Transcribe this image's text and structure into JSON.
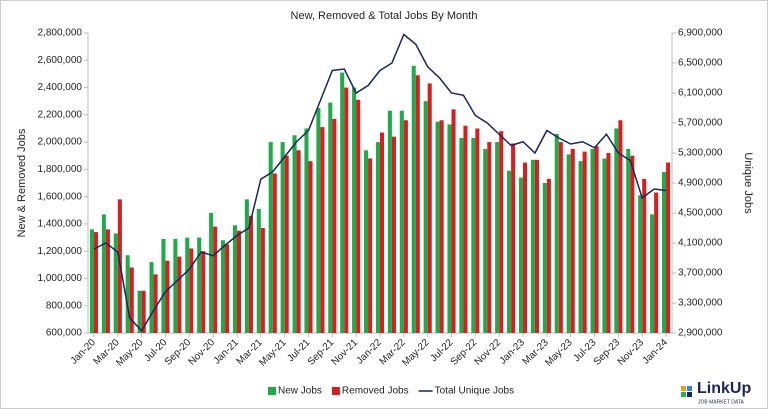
{
  "chart_data": {
    "type": "bar-line",
    "title": "New, Removed & Total Jobs By Month",
    "y_label": "New & Removed Jobs",
    "y2_label": "Unique Jobs",
    "categories": [
      "Jan-20",
      null,
      "Mar-20",
      null,
      "May-20",
      null,
      "Jul-20",
      null,
      "Sep-20",
      null,
      "Nov-20",
      null,
      "Jan-21",
      null,
      "Mar-21",
      null,
      "May-21",
      null,
      "Jul-21",
      null,
      "Sep-21",
      null,
      "Nov-21",
      null,
      "Jan-22",
      null,
      "Mar-22",
      null,
      "May-22",
      null,
      "Jul-22",
      null,
      "Sep-22",
      null,
      "Nov-22",
      null,
      "Jan-23",
      null,
      "Mar-23",
      null,
      "May-23",
      null,
      "Jul-23",
      null,
      "Sep-23",
      null,
      "Nov-23",
      null,
      "Jan-24"
    ],
    "series": [
      {
        "name": "New Jobs",
        "color": "#21a94b",
        "values": [
          1360000,
          1470000,
          1330000,
          1170000,
          910000,
          1120000,
          1290000,
          1290000,
          1300000,
          1300000,
          1480000,
          1280000,
          1390000,
          1580000,
          1510000,
          2000000,
          2000000,
          2050000,
          2100000,
          2250000,
          2290000,
          2510000,
          2400000,
          1940000,
          2000000,
          2230000,
          2230000,
          2560000,
          2300000,
          2150000,
          2130000,
          2030000,
          2030000,
          1950000,
          2000000,
          1790000,
          1740000,
          1870000,
          1700000,
          2060000,
          1910000,
          1860000,
          1950000,
          1880000,
          2100000,
          1950000,
          1610000,
          1470000,
          1780000
        ]
      },
      {
        "name": "Removed Jobs",
        "color": "#d42020",
        "values": [
          1340000,
          1360000,
          1580000,
          1080000,
          910000,
          1030000,
          1130000,
          1160000,
          1220000,
          1200000,
          1380000,
          1250000,
          1350000,
          1460000,
          1370000,
          1770000,
          1900000,
          1940000,
          1860000,
          2110000,
          2170000,
          2400000,
          2310000,
          1880000,
          2070000,
          2040000,
          2160000,
          2490000,
          2430000,
          2160000,
          2240000,
          2120000,
          2100000,
          2000000,
          2080000,
          1990000,
          1850000,
          1870000,
          1730000,
          2000000,
          1950000,
          1930000,
          1970000,
          1920000,
          2160000,
          1900000,
          1730000,
          1630000,
          1850000
        ]
      },
      {
        "name": "Total Unique Jobs",
        "color": "#1c2557",
        "axis": "y2",
        "kind": "line",
        "values": [
          4020000,
          4100000,
          3980000,
          3100000,
          2930000,
          3200000,
          3450000,
          3600000,
          3750000,
          3980000,
          3930000,
          4070000,
          4200000,
          4300000,
          4950000,
          5050000,
          5250000,
          5450000,
          5600000,
          6000000,
          6400000,
          6420000,
          6100000,
          6200000,
          6400000,
          6500000,
          6880000,
          6750000,
          6450000,
          6300000,
          6100000,
          6070000,
          5800000,
          5700000,
          5550000,
          5400000,
          5450000,
          5300000,
          5600000,
          5500000,
          5420000,
          5450000,
          5370000,
          5550000,
          5300000,
          5200000,
          4700000,
          4820000,
          4800000
        ]
      }
    ],
    "ylim": [
      600000,
      2800000
    ],
    "yticks": [
      {
        "value": 600000,
        "label": "600,000"
      },
      {
        "value": 800000,
        "label": "800,000"
      },
      {
        "value": 1000000,
        "label": "1,000,000"
      },
      {
        "value": 1200000,
        "label": "1,200,000"
      },
      {
        "value": 1400000,
        "label": "1,400,000"
      },
      {
        "value": 1600000,
        "label": "1,600,000"
      },
      {
        "value": 1800000,
        "label": "1,800,000"
      },
      {
        "value": 2000000,
        "label": "2,000,000"
      },
      {
        "value": 2200000,
        "label": "2,200,000"
      },
      {
        "value": 2400000,
        "label": "2,400,000"
      },
      {
        "value": 2600000,
        "label": "2,600,000"
      },
      {
        "value": 2800000,
        "label": "2,800,000"
      }
    ],
    "y2lim": [
      2900000,
      6900000
    ],
    "y2ticks": [
      {
        "value": 2900000,
        "label": "2,900,000"
      },
      {
        "value": 3300000,
        "label": "3,300,000"
      },
      {
        "value": 3700000,
        "label": "3,700,000"
      },
      {
        "value": 4100000,
        "label": "4,100,000"
      },
      {
        "value": 4500000,
        "label": "4,500,000"
      },
      {
        "value": 4900000,
        "label": "4,900,000"
      },
      {
        "value": 5300000,
        "label": "5,300,000"
      },
      {
        "value": 5700000,
        "label": "5,700,000"
      },
      {
        "value": 6100000,
        "label": "6,100,000"
      },
      {
        "value": 6500000,
        "label": "6,500,000"
      },
      {
        "value": 6900000,
        "label": "6,900,000"
      }
    ],
    "grid": false,
    "legend": "bottom"
  },
  "logo": {
    "name": "LinkUp",
    "tagline": "JOB MARKET DATA"
  }
}
